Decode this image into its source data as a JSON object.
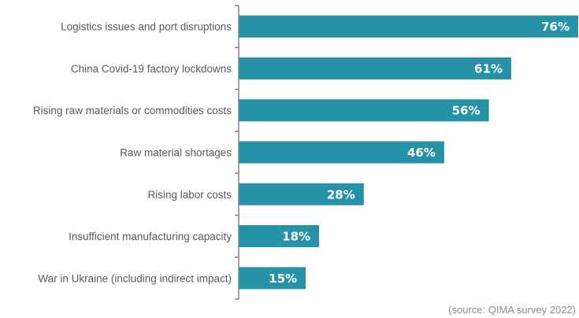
{
  "chart_data": {
    "type": "bar",
    "orientation": "horizontal",
    "categories": [
      "Logistics issues and port disruptions",
      "China Covid-19 factory lockdowns",
      "Rising raw materials or commodities costs",
      "Raw material shortages",
      "Rising labor costs",
      "Insufficient manufacturing capacity",
      "War in Ukraine (including indirect impact)"
    ],
    "values": [
      76,
      61,
      56,
      46,
      28,
      18,
      15
    ],
    "value_labels": [
      "76%",
      "61%",
      "56%",
      "46%",
      "28%",
      "18%",
      "15%"
    ],
    "xlim": [
      0,
      76
    ],
    "bar_color": "#2592a8",
    "axis_color": "#7f8488",
    "grid": false,
    "legend": "none"
  },
  "source_note": "(source: QIMA survey 2022)"
}
